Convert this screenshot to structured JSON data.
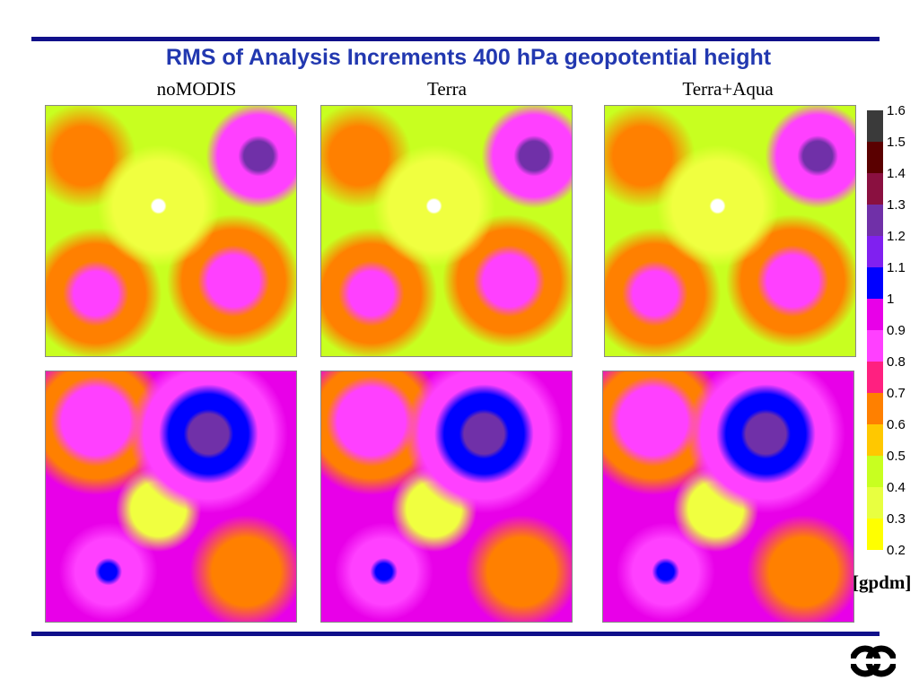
{
  "title": "RMS of Analysis Increments 400 hPa geopotential height",
  "column_labels": [
    "noMODIS",
    "Terra",
    "Terra+Aqua"
  ],
  "colorbar": {
    "levels": [
      1.6,
      1.5,
      1.4,
      1.3,
      1.2,
      1.1,
      1,
      0.9,
      0.8,
      0.7,
      0.6,
      0.5,
      0.4,
      0.3,
      0.2
    ],
    "colors": [
      "#3a3a3a",
      "#5a0000",
      "#8a1040",
      "#7030a8",
      "#8020f0",
      "#0000ff",
      "#e800e8",
      "#ff40ff",
      "#ff2080",
      "#ff8000",
      "#ffc800",
      "#c8ff20",
      "#e8ff40",
      "#ffff00"
    ],
    "unit": "[gpdm]"
  }
}
